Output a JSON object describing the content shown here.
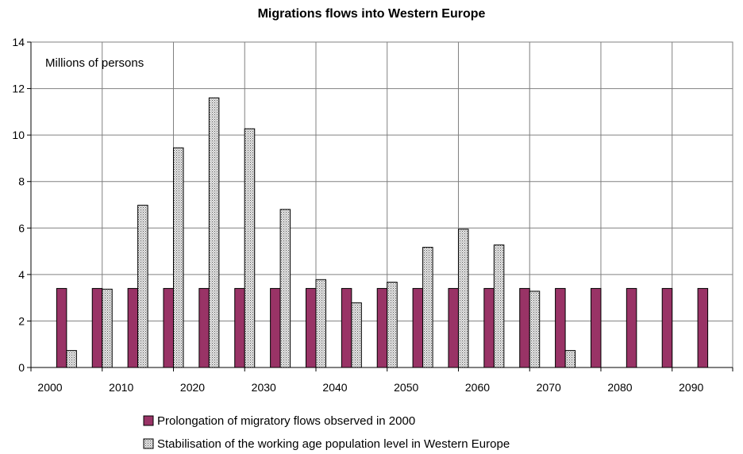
{
  "chart_data": {
    "type": "bar",
    "title": "Migrations flows into Western Europe",
    "annotation": "Millions of persons",
    "xlabel": "",
    "ylabel": "",
    "ylim": [
      0,
      14
    ],
    "yticks": [
      0,
      2,
      4,
      6,
      8,
      10,
      12,
      14
    ],
    "x_tick_labels": [
      "2000",
      "2010",
      "2020",
      "2030",
      "2040",
      "2050",
      "2060",
      "2070",
      "2080",
      "2090"
    ],
    "grid": true,
    "legend_position": "bottom",
    "categories": [
      "2005",
      "2010",
      "2015",
      "2020",
      "2025",
      "2030",
      "2035",
      "2040",
      "2045",
      "2050",
      "2055",
      "2060",
      "2065",
      "2070",
      "2075",
      "2080",
      "2085",
      "2090",
      "2095"
    ],
    "series": [
      {
        "name": "Prolongation of migratory flows observed in 2000",
        "color": "#993366",
        "pattern": "solid",
        "values": [
          3.4,
          3.4,
          3.4,
          3.4,
          3.4,
          3.4,
          3.4,
          3.4,
          3.4,
          3.4,
          3.4,
          3.4,
          3.4,
          3.4,
          3.4,
          3.4,
          3.4,
          3.4,
          3.4
        ]
      },
      {
        "name": "Stabilisation of the working age population level in Western Europe",
        "color": "#c0c0c0",
        "pattern": "dotted",
        "values": [
          0.73,
          3.37,
          6.98,
          9.45,
          11.6,
          10.27,
          6.8,
          3.78,
          2.78,
          3.67,
          5.17,
          5.95,
          5.27,
          3.28,
          0.73,
          0,
          0,
          0,
          0
        ]
      }
    ]
  }
}
